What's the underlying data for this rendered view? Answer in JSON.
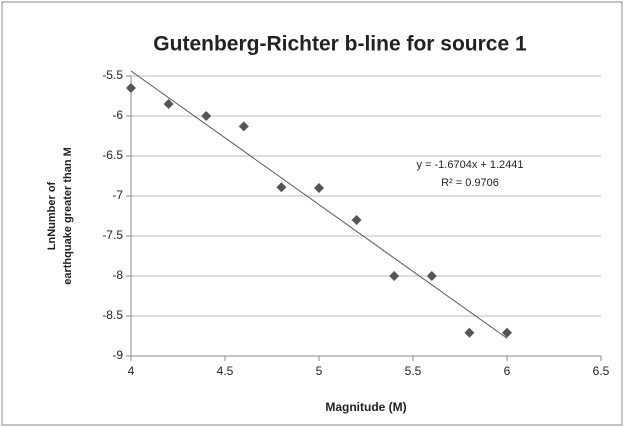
{
  "chart_data": {
    "type": "scatter",
    "title": "Gutenberg-Richter b-line for source 1",
    "x_label": "Magnitude (M)",
    "y_label": [
      "LnNumber of",
      "earthquake greater than M"
    ],
    "series": [
      {
        "name": "source 1",
        "color": "#555555",
        "x": [
          4,
          4.2,
          4.4,
          4.6,
          4.8,
          5,
          5.2,
          5.4,
          5.6,
          5.8,
          6
        ],
        "values": [
          -5.65,
          -5.85,
          -6.0,
          -6.13,
          -6.89,
          -6.9,
          -7.3,
          -8.0,
          -8.0,
          -8.71,
          -8.71
        ]
      }
    ],
    "trendline": {
      "slope": -1.6704,
      "intercept": 1.2441,
      "color": "#555555",
      "label": "y = -1.6704x + 1.2441",
      "r2_label": "R² = 0.9706"
    },
    "xlim": [
      4,
      6.5
    ],
    "xticks": [
      4,
      4.5,
      5,
      5.5,
      6,
      6.5
    ],
    "ylim": [
      -9,
      -5.5
    ],
    "yticks": [
      -9,
      -8.5,
      -8,
      -7.5,
      -7,
      -6.5,
      -6,
      -5.5
    ],
    "grid": true
  }
}
